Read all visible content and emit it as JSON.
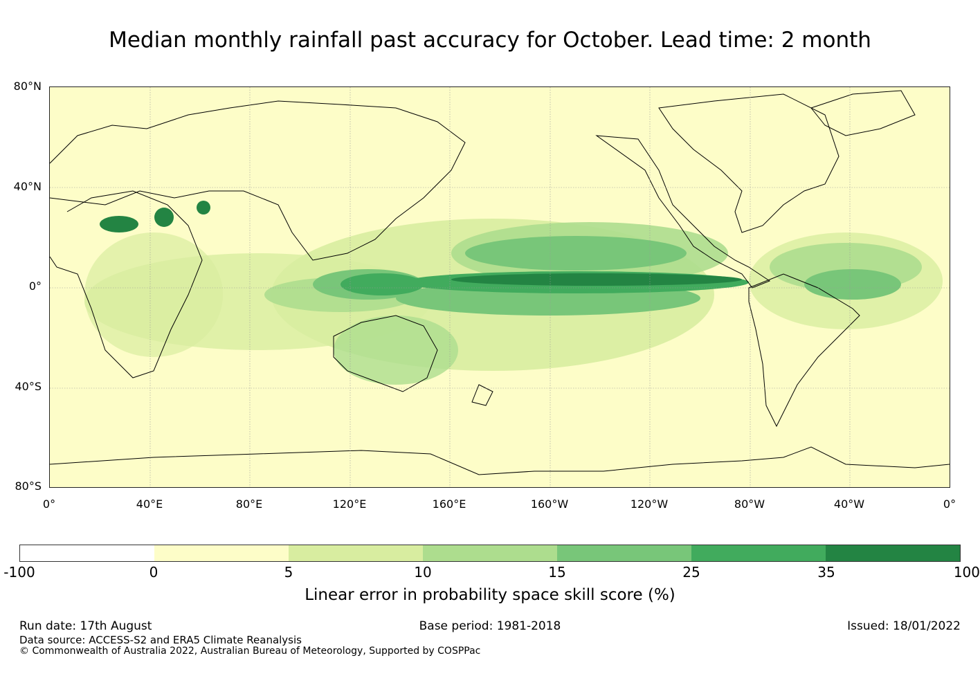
{
  "title": "Median monthly rainfall past accuracy for October. Lead time: 2 month",
  "map": {
    "lat_labels": [
      "80°N",
      "40°N",
      "0°",
      "40°S",
      "80°S"
    ],
    "lat_values": [
      80,
      40,
      0,
      -40,
      -80
    ],
    "lon_labels": [
      "0°",
      "40°E",
      "80°E",
      "120°E",
      "160°E",
      "160°W",
      "120°W",
      "80°W",
      "40°W",
      "0°"
    ],
    "lon_values": [
      0,
      40,
      80,
      120,
      160,
      200,
      240,
      280,
      320,
      360
    ],
    "background_color": "#fdfdc8",
    "grid": true
  },
  "colorbar": {
    "ticks": [
      "-100",
      "0",
      "5",
      "10",
      "15",
      "25",
      "35",
      "100"
    ],
    "colors": [
      "#ffffff",
      "#fdfdc8",
      "#d8eda0",
      "#addd8e",
      "#78c679",
      "#41ab5d",
      "#238443"
    ],
    "label": "Linear error in probability space skill score (%)"
  },
  "footer": {
    "run_date": "Run date: 17th August",
    "base_period": "Base period: 1981-2018",
    "issued": "Issued: 18/01/2022",
    "data_source": "Data source: ACCESS-S2 and ERA5 Climate Reanalysis",
    "copyright": "© Commonwealth of Australia 2022, Australian Bureau of Meteorology, Supported by COSPPac"
  }
}
